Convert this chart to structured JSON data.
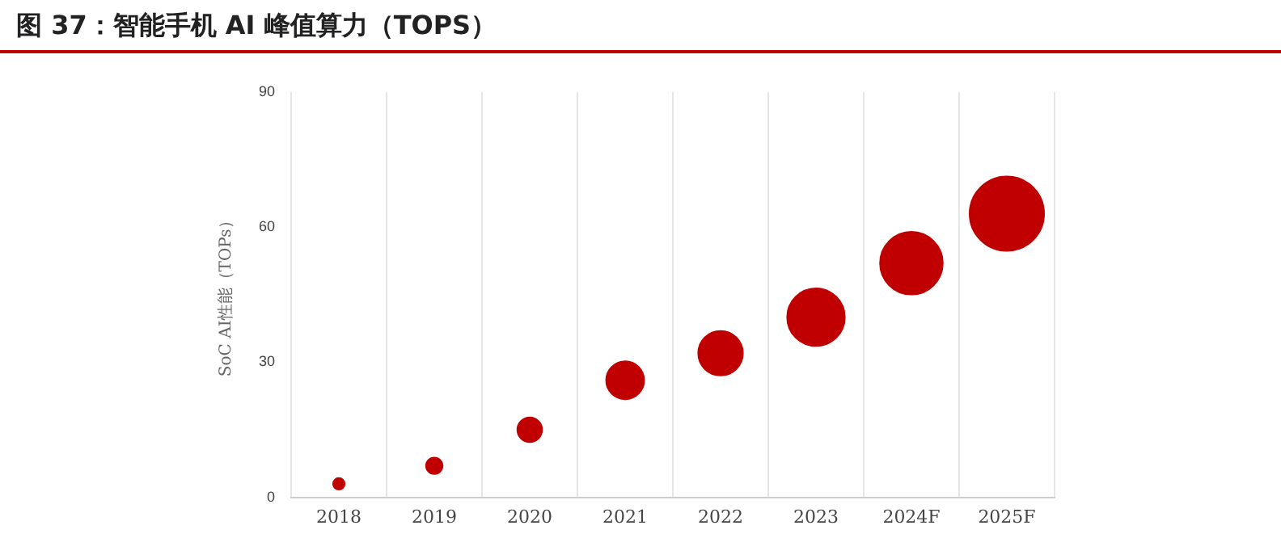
{
  "chart_data": {
    "type": "bubble",
    "title": "图 37：智能手机 AI 峰值算力（TOPS）",
    "ylabel": "SoC AI性能（TOPs）",
    "categories": [
      "2018",
      "2019",
      "2020",
      "2021",
      "2022",
      "2023",
      "2024F",
      "2025F"
    ],
    "series": [
      {
        "color": "#c00000",
        "values": [
          3,
          7,
          15,
          26,
          32,
          40,
          52,
          63
        ],
        "sizes": [
          0.024,
          0.049,
          0.11,
          0.26,
          0.36,
          0.6,
          0.71,
          1
        ]
      }
    ],
    "ylim": [
      0,
      90
    ],
    "yticks": [
      0,
      30,
      60,
      90
    ],
    "grid": "x",
    "legend": false
  }
}
